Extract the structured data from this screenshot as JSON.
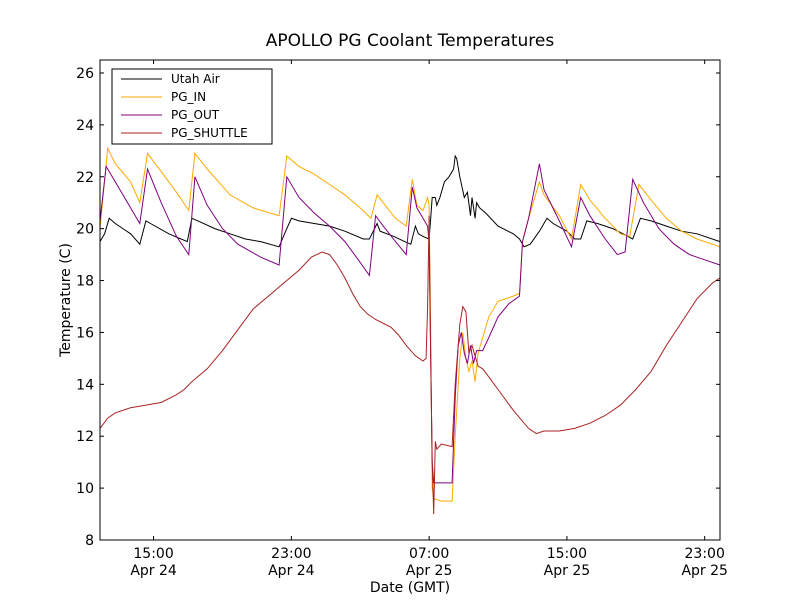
{
  "chart_data": {
    "type": "line",
    "title": "APOLLO PG Coolant Temperatures",
    "xlabel": "Date (GMT)",
    "ylabel": "Temperature (C)",
    "xlim_hours": [
      0,
      40.5
    ],
    "ylim": [
      8,
      26.5
    ],
    "yticks": [
      8,
      10,
      12,
      14,
      16,
      18,
      20,
      22,
      24,
      26
    ],
    "xticks": [
      {
        "hour": 3.5,
        "line1": "15:00",
        "line2": "Apr 24"
      },
      {
        "hour": 12.5,
        "line1": "23:00",
        "line2": "Apr 24"
      },
      {
        "hour": 21.5,
        "line1": "07:00",
        "line2": "Apr 25"
      },
      {
        "hour": 30.5,
        "line1": "15:00",
        "line2": "Apr 25"
      },
      {
        "hour": 39.5,
        "line1": "23:00",
        "line2": "Apr 25"
      }
    ],
    "legend_position": "top-left",
    "series": [
      {
        "name": "Utah Air",
        "color": "#000000",
        "points": [
          [
            0,
            19.5
          ],
          [
            0.3,
            19.8
          ],
          [
            0.6,
            20.4
          ],
          [
            1,
            20.2
          ],
          [
            2,
            19.8
          ],
          [
            2.6,
            19.4
          ],
          [
            3,
            20.3
          ],
          [
            3.3,
            20.2
          ],
          [
            4.5,
            19.8
          ],
          [
            5.3,
            19.6
          ],
          [
            5.7,
            19.5
          ],
          [
            6,
            20.4
          ],
          [
            6.4,
            20.3
          ],
          [
            7.5,
            20
          ],
          [
            8.5,
            19.8
          ],
          [
            9.5,
            19.6
          ],
          [
            10.5,
            19.5
          ],
          [
            11.7,
            19.3
          ],
          [
            12.2,
            20
          ],
          [
            12.5,
            20.4
          ],
          [
            13,
            20.3
          ],
          [
            14,
            20.2
          ],
          [
            15,
            20.1
          ],
          [
            16,
            19.9
          ],
          [
            17.2,
            19.6
          ],
          [
            17.6,
            19.6
          ],
          [
            18.1,
            20.2
          ],
          [
            18.3,
            19.9
          ],
          [
            19.2,
            19.7
          ],
          [
            19.9,
            19.5
          ],
          [
            20.3,
            19.4
          ],
          [
            20.6,
            20.1
          ],
          [
            20.8,
            19.8
          ],
          [
            21.1,
            19.7
          ],
          [
            21.5,
            19.6
          ],
          [
            21.6,
            20.4
          ],
          [
            21.7,
            21.2
          ],
          [
            21.9,
            21.2
          ],
          [
            22.0,
            20.9
          ],
          [
            22.2,
            21.2
          ],
          [
            22.5,
            21.8
          ],
          [
            22.8,
            22
          ],
          [
            23.1,
            22.3
          ],
          [
            23.2,
            22.8
          ],
          [
            23.3,
            22.7
          ],
          [
            23.5,
            22.0
          ],
          [
            23.8,
            21.2
          ],
          [
            24.0,
            21.4
          ],
          [
            24.2,
            20.5
          ],
          [
            24.3,
            21.2
          ],
          [
            24.5,
            20.4
          ],
          [
            24.6,
            21.0
          ],
          [
            24.8,
            20.8
          ],
          [
            25.2,
            20.6
          ],
          [
            26,
            20.1
          ],
          [
            27,
            19.8
          ],
          [
            27.4,
            19.6
          ],
          [
            27.7,
            19.3
          ],
          [
            28.1,
            19.4
          ],
          [
            28.7,
            19.9
          ],
          [
            29.2,
            20.4
          ],
          [
            29.6,
            20.2
          ],
          [
            30.5,
            19.9
          ],
          [
            31,
            19.6
          ],
          [
            31.4,
            19.6
          ],
          [
            31.8,
            20.3
          ],
          [
            32.5,
            20.2
          ],
          [
            33.5,
            20
          ],
          [
            34.5,
            19.7
          ],
          [
            34.8,
            19.6
          ],
          [
            35.3,
            20.4
          ],
          [
            36,
            20.3
          ],
          [
            37,
            20.1
          ],
          [
            38,
            19.9
          ],
          [
            39,
            19.8
          ],
          [
            40.5,
            19.5
          ]
        ]
      },
      {
        "name": "PG_IN",
        "color": "#ffaa00",
        "points": [
          [
            0,
            20
          ],
          [
            0.5,
            23.1
          ],
          [
            1,
            22.5
          ],
          [
            2,
            21.8
          ],
          [
            2.6,
            21
          ],
          [
            3.1,
            22.9
          ],
          [
            4,
            22.2
          ],
          [
            5,
            21.4
          ],
          [
            5.8,
            20.7
          ],
          [
            6.2,
            22.9
          ],
          [
            7,
            22.3
          ],
          [
            8.5,
            21.3
          ],
          [
            10,
            20.8
          ],
          [
            11.7,
            20.5
          ],
          [
            12.2,
            22.8
          ],
          [
            13,
            22.4
          ],
          [
            14,
            22.1
          ],
          [
            15,
            21.7
          ],
          [
            16,
            21.3
          ],
          [
            17,
            20.8
          ],
          [
            17.7,
            20.4
          ],
          [
            18.1,
            21.3
          ],
          [
            18.5,
            21
          ],
          [
            19.3,
            20.4
          ],
          [
            20,
            20.1
          ],
          [
            20.4,
            21.9
          ],
          [
            20.7,
            20.9
          ],
          [
            21.1,
            20.7
          ],
          [
            21.4,
            21.2
          ],
          [
            21.5,
            20.9
          ],
          [
            21.6,
            16
          ],
          [
            21.7,
            10
          ],
          [
            21.8,
            9.6
          ],
          [
            22.3,
            9.5
          ],
          [
            23,
            9.5
          ],
          [
            23.2,
            12
          ],
          [
            23.5,
            15
          ],
          [
            23.7,
            16
          ],
          [
            23.9,
            15
          ],
          [
            24.1,
            14.5
          ],
          [
            24.3,
            14.9
          ],
          [
            24.5,
            14.1
          ],
          [
            24.7,
            15.2
          ],
          [
            25,
            15.8
          ],
          [
            25.4,
            16.6
          ],
          [
            26,
            17.2
          ],
          [
            27,
            17.4
          ],
          [
            27.4,
            17.5
          ],
          [
            27.6,
            19.5
          ],
          [
            28,
            20.4
          ],
          [
            28.7,
            21.8
          ],
          [
            29,
            21.3
          ],
          [
            30,
            20.5
          ],
          [
            30.8,
            19.6
          ],
          [
            31.4,
            21.7
          ],
          [
            32,
            21.1
          ],
          [
            33,
            20.4
          ],
          [
            34,
            19.8
          ],
          [
            34.6,
            19.7
          ],
          [
            35.2,
            21.7
          ],
          [
            36,
            21.1
          ],
          [
            37,
            20.4
          ],
          [
            38,
            19.9
          ],
          [
            39,
            19.6
          ],
          [
            40.5,
            19.3
          ]
        ]
      },
      {
        "name": "PG_OUT",
        "color": "#800080",
        "points": [
          [
            0,
            20.3
          ],
          [
            0.4,
            22.4
          ],
          [
            1,
            21.8
          ],
          [
            2,
            20.8
          ],
          [
            2.6,
            20.2
          ],
          [
            3.1,
            22.3
          ],
          [
            4,
            21
          ],
          [
            5,
            19.7
          ],
          [
            5.8,
            19
          ],
          [
            6.2,
            22
          ],
          [
            7,
            20.9
          ],
          [
            8,
            20
          ],
          [
            9,
            19.4
          ],
          [
            10.5,
            18.9
          ],
          [
            11.7,
            18.6
          ],
          [
            12.2,
            22
          ],
          [
            13,
            21.2
          ],
          [
            14,
            20.6
          ],
          [
            15,
            20.1
          ],
          [
            16,
            19.5
          ],
          [
            17,
            18.7
          ],
          [
            17.6,
            18.2
          ],
          [
            18,
            20.5
          ],
          [
            18.5,
            20.1
          ],
          [
            19.3,
            19.5
          ],
          [
            20,
            19
          ],
          [
            20.4,
            21.6
          ],
          [
            20.7,
            20.8
          ],
          [
            21.1,
            20.4
          ],
          [
            21.4,
            20.1
          ],
          [
            21.5,
            19.5
          ],
          [
            21.6,
            15
          ],
          [
            21.7,
            11
          ],
          [
            21.8,
            10.2
          ],
          [
            22.3,
            10.2
          ],
          [
            23,
            10.2
          ],
          [
            23.2,
            13.5
          ],
          [
            23.4,
            15.5
          ],
          [
            23.6,
            16
          ],
          [
            23.8,
            15.2
          ],
          [
            24,
            14.8
          ],
          [
            24.2,
            15.5
          ],
          [
            24.4,
            14.8
          ],
          [
            24.6,
            15.3
          ],
          [
            25,
            15.3
          ],
          [
            25.4,
            15.8
          ],
          [
            26,
            16.6
          ],
          [
            26.7,
            17.1
          ],
          [
            27.4,
            17.4
          ],
          [
            27.6,
            19.5
          ],
          [
            28,
            20.4
          ],
          [
            28.7,
            22.5
          ],
          [
            29,
            21.5
          ],
          [
            30,
            20.3
          ],
          [
            30.8,
            19.3
          ],
          [
            31.4,
            21.2
          ],
          [
            32,
            20.5
          ],
          [
            33,
            19.6
          ],
          [
            33.8,
            19
          ],
          [
            34.3,
            19.1
          ],
          [
            34.8,
            21.9
          ],
          [
            35.5,
            21
          ],
          [
            36.5,
            20
          ],
          [
            37.5,
            19.4
          ],
          [
            38.5,
            19
          ],
          [
            39.5,
            18.8
          ],
          [
            40.5,
            18.6
          ]
        ]
      },
      {
        "name": "PG_SHUTTLE",
        "color": "#aa2222",
        "points": [
          [
            0,
            12.3
          ],
          [
            0.5,
            12.7
          ],
          [
            1,
            12.9
          ],
          [
            2,
            13.1
          ],
          [
            3,
            13.2
          ],
          [
            4,
            13.3
          ],
          [
            5,
            13.6
          ],
          [
            5.5,
            13.8
          ],
          [
            6,
            14.1
          ],
          [
            7,
            14.6
          ],
          [
            8,
            15.3
          ],
          [
            9,
            16.1
          ],
          [
            10,
            16.9
          ],
          [
            11,
            17.4
          ],
          [
            12,
            17.9
          ],
          [
            13,
            18.4
          ],
          [
            13.8,
            18.9
          ],
          [
            14.5,
            19.1
          ],
          [
            15,
            19
          ],
          [
            15.5,
            18.6
          ],
          [
            16,
            18.1
          ],
          [
            16.5,
            17.5
          ],
          [
            17,
            17
          ],
          [
            17.5,
            16.7
          ],
          [
            18,
            16.5
          ],
          [
            19,
            16.2
          ],
          [
            19.5,
            15.9
          ],
          [
            20,
            15.5
          ],
          [
            20.6,
            15.1
          ],
          [
            21.1,
            14.9
          ],
          [
            21.3,
            15
          ],
          [
            21.4,
            17
          ],
          [
            21.5,
            20.5
          ],
          [
            21.6,
            15
          ],
          [
            21.7,
            11
          ],
          [
            21.8,
            9
          ],
          [
            21.9,
            11.8
          ],
          [
            22,
            11.5
          ],
          [
            22.3,
            11.7
          ],
          [
            23,
            11.6
          ],
          [
            23.2,
            14
          ],
          [
            23.5,
            16.3
          ],
          [
            23.7,
            17
          ],
          [
            23.9,
            16.8
          ],
          [
            24.1,
            15.2
          ],
          [
            24.3,
            15.5
          ],
          [
            24.5,
            15.1
          ],
          [
            24.7,
            14.7
          ],
          [
            25,
            14.6
          ],
          [
            25.5,
            14.2
          ],
          [
            26,
            13.8
          ],
          [
            27,
            13
          ],
          [
            28,
            12.3
          ],
          [
            28.5,
            12.1
          ],
          [
            29,
            12.2
          ],
          [
            30,
            12.2
          ],
          [
            31,
            12.3
          ],
          [
            32,
            12.5
          ],
          [
            33,
            12.8
          ],
          [
            34,
            13.2
          ],
          [
            35,
            13.8
          ],
          [
            36,
            14.5
          ],
          [
            37,
            15.5
          ],
          [
            38,
            16.4
          ],
          [
            39,
            17.3
          ],
          [
            40,
            17.9
          ],
          [
            40.5,
            18.1
          ]
        ]
      }
    ]
  }
}
